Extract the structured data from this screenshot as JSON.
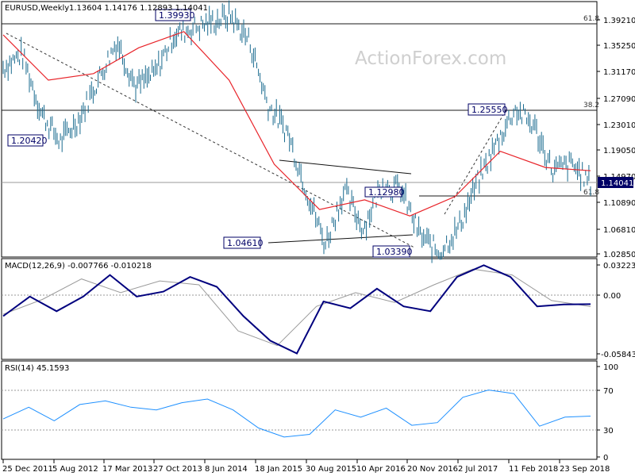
{
  "watermark": "ActionForex.com",
  "price_panel": {
    "header": {
      "symbol": "EURUSD,Weekly",
      "values": "1.13604 1.14176 1.12893 1.14041"
    },
    "current_price_label": "1.14041",
    "fib_labels": {
      "top": "61.8",
      "mid": "38.2",
      "low": "61.8"
    },
    "price_boxes": [
      "1.39930",
      "1.20420",
      "1.25550",
      "1.12980",
      "1.04610",
      "1.03390"
    ],
    "y_ticks": [
      "1.39210",
      "1.35250",
      "1.31170",
      "1.27090",
      "1.23010",
      "1.19050",
      "1.14970",
      "1.10890",
      "1.06810",
      "1.02850"
    ]
  },
  "macd_panel": {
    "header": "MACD(12,26,9) -0.007766 -0.010218",
    "y_ticks": [
      "0.032235",
      "0.00",
      "-0.058434"
    ]
  },
  "rsi_panel": {
    "header": "RSI(14) 45.1593",
    "y_ticks": [
      "100",
      "70",
      "30",
      "0"
    ]
  },
  "x_axis": {
    "labels": [
      "25 Dec 2011",
      "5 Aug 2012",
      "17 Mar 2013",
      "27 Oct 2013",
      "8 Jun 2014",
      "18 Jan 2015",
      "30 Aug 2015",
      "10 Apr 2016",
      "20 Nov 2016",
      "2 Jul 2017",
      "11 Feb 2018",
      "23 Sep 2018"
    ]
  },
  "colors": {
    "ma": "#e8242a",
    "bars": "#1a6b8f",
    "box_border": "#000066",
    "macd_line": "#00007e",
    "signal_line": "#9a9a9a",
    "rsi_line": "#1e90ff",
    "current_price_box": "#000066"
  },
  "chart_data": [
    {
      "type": "line",
      "title": "EURUSD,Weekly",
      "series": [
        {
          "name": "EURUSD,Weekly",
          "points": [
            [
              "25 Dec 2011",
              1.32
            ],
            [
              "Mar 2012",
              1.34
            ],
            [
              "Jun 2012",
              1.25
            ],
            [
              "Jul 2012",
              1.2042
            ],
            [
              "5 Aug 2012",
              1.24
            ],
            [
              "Oct 2012",
              1.3
            ],
            [
              "Feb 2013",
              1.36
            ],
            [
              "17 Mar 2013",
              1.29
            ],
            [
              "Jul 2013",
              1.31
            ],
            [
              "27 Oct 2013",
              1.37
            ],
            [
              "Dec 2013",
              1.38
            ],
            [
              "Mar 2014",
              1.39
            ],
            [
              "May 2014",
              1.3993
            ],
            [
              "8 Jun 2014",
              1.36
            ],
            [
              "Oct 2014",
              1.26
            ],
            [
              "Dec 2014",
              1.22
            ],
            [
              "18 Jan 2015",
              1.13
            ],
            [
              "Mar 2015",
              1.0461
            ],
            [
              "30 Aug 2015",
              1.13
            ],
            [
              "Dec 2015",
              1.07
            ],
            [
              "10 Apr 2016",
              1.14
            ],
            [
              "May 2016",
              1.1298
            ],
            [
              "20 Nov 2016",
              1.06
            ],
            [
              "Jan 2017",
              1.0339
            ],
            [
              "Apr 2017",
              1.07
            ],
            [
              "2 Jul 2017",
              1.14
            ],
            [
              "Sep 2017",
              1.2
            ],
            [
              "11 Feb 2018",
              1.2555
            ],
            [
              "Apr 2018",
              1.23
            ],
            [
              "Jun 2018",
              1.16
            ],
            [
              "23 Sep 2018",
              1.17
            ],
            [
              "Nov 2018",
              1.14041
            ]
          ]
        },
        {
          "name": "Moving average",
          "points": [
            [
              "25 Dec 2011",
              1.37
            ],
            [
              "5 Aug 2012",
              1.3
            ],
            [
              "17 Mar 2013",
              1.31
            ],
            [
              "27 Oct 2013",
              1.35
            ],
            [
              "8 Jun 2014",
              1.375
            ],
            [
              "Oct 2014",
              1.3
            ],
            [
              "18 Jan 2015",
              1.17
            ],
            [
              "30 Aug 2015",
              1.1
            ],
            [
              "10 Apr 2016",
              1.115
            ],
            [
              "20 Nov 2016",
              1.09
            ],
            [
              "2 Jul 2017",
              1.12
            ],
            [
              "11 Feb 2018",
              1.19
            ],
            [
              "23 Sep 2018",
              1.165
            ],
            [
              "Nov 2018",
              1.16
            ]
          ]
        }
      ],
      "levels": [
        {
          "label": "61.8",
          "value": 1.3921
        },
        {
          "label": "38.2",
          "value": 1.2555
        },
        {
          "label": "61.8",
          "value": 1.12
        }
      ]
    },
    {
      "type": "line",
      "title": "MACD(12,26,9) -0.007766 -0.010218",
      "ylim": [
        -0.058434,
        0.032235
      ],
      "series": [
        {
          "name": "MACD",
          "points": [
            [
              "25 Dec 2011",
              -0.02
            ],
            [
              "Mar 2012",
              0.0
            ],
            [
              "Jun 2012",
              -0.015
            ],
            [
              "5 Aug 2012",
              0.0
            ],
            [
              "Dec 2012",
              0.022
            ],
            [
              "17 Mar 2013",
              0.0
            ],
            [
              "Jul 2013",
              0.005
            ],
            [
              "27 Oct 2013",
              0.02
            ],
            [
              "8 Jun 2014",
              0.01
            ],
            [
              "Sep 2014",
              -0.02
            ],
            [
              "18 Jan 2015",
              -0.045
            ],
            [
              "Mar 2015",
              -0.058
            ],
            [
              "30 Aug 2015",
              -0.005
            ],
            [
              "Dec 2015",
              -0.012
            ],
            [
              "10 Apr 2016",
              0.008
            ],
            [
              "20 Nov 2016",
              -0.01
            ],
            [
              "Jan 2017",
              -0.015
            ],
            [
              "2 Jul 2017",
              0.02
            ],
            [
              "Sep 2017",
              0.032
            ],
            [
              "11 Feb 2018",
              0.02
            ],
            [
              "Jun 2018",
              -0.01
            ],
            [
              "23 Sep 2018",
              -0.008
            ],
            [
              "Nov 2018",
              -0.007766
            ]
          ]
        },
        {
          "name": "Signal",
          "points": [
            [
              "25 Dec 2011",
              -0.018
            ],
            [
              "5 Aug 2012",
              -0.003
            ],
            [
              "Dec 2012",
              0.018
            ],
            [
              "17 Mar 2013",
              0.004
            ],
            [
              "27 Oct 2013",
              0.016
            ],
            [
              "8 Jun 2014",
              0.012
            ],
            [
              "18 Jan 2015",
              -0.035
            ],
            [
              "Mar 2015",
              -0.05
            ],
            [
              "30 Aug 2015",
              -0.01
            ],
            [
              "10 Apr 2016",
              0.004
            ],
            [
              "20 Nov 2016",
              -0.006
            ],
            [
              "2 Jul 2017",
              0.012
            ],
            [
              "Sep 2017",
              0.028
            ],
            [
              "11 Feb 2018",
              0.022
            ],
            [
              "Jun 2018",
              -0.004
            ],
            [
              "Nov 2018",
              -0.010218
            ]
          ]
        }
      ]
    },
    {
      "type": "line",
      "title": "RSI(14) 45.1593",
      "ylim": [
        0,
        100
      ],
      "series": [
        {
          "name": "RSI(14)",
          "points": [
            [
              "25 Dec 2011",
              42
            ],
            [
              "Mar 2012",
              55
            ],
            [
              "Jun 2012",
              40
            ],
            [
              "5 Aug 2012",
              58
            ],
            [
              "Oct 2012",
              62
            ],
            [
              "17 Mar 2013",
              55
            ],
            [
              "Jul 2013",
              52
            ],
            [
              "27 Oct 2013",
              60
            ],
            [
              "May 2014",
              64
            ],
            [
              "8 Jun 2014",
              52
            ],
            [
              "Oct 2014",
              32
            ],
            [
              "18 Jan 2015",
              22
            ],
            [
              "Mar 2015",
              25
            ],
            [
              "30 Aug 2015",
              52
            ],
            [
              "Dec 2015",
              44
            ],
            [
              "10 Apr 2016",
              54
            ],
            [
              "20 Nov 2016",
              35
            ],
            [
              "Jan 2017",
              38
            ],
            [
              "2 Jul 2017",
              66
            ],
            [
              "Sep 2017",
              74
            ],
            [
              "11 Feb 2018",
              70
            ],
            [
              "Jun 2018",
              34
            ],
            [
              "23 Sep 2018",
              44
            ],
            [
              "Nov 2018",
              45.1593
            ]
          ]
        }
      ]
    }
  ]
}
